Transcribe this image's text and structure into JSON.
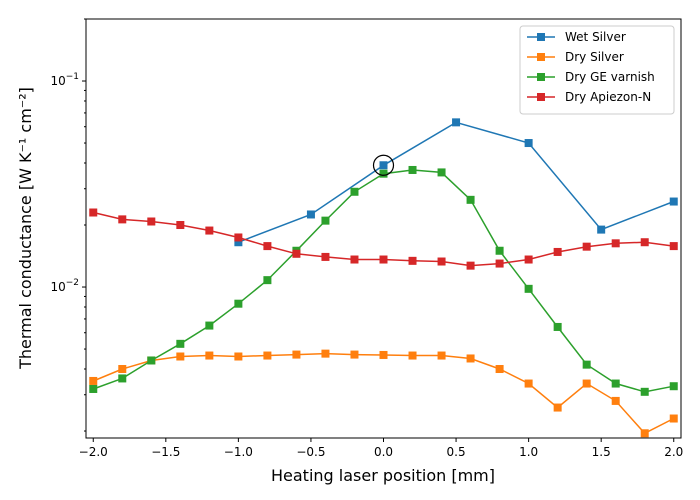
{
  "chart_data": {
    "type": "line",
    "xlabel": "Heating laser position [mm]",
    "ylabel": "Thermal conductance [W K⁻¹ cm⁻²]",
    "xlim": [
      -2.05,
      2.05
    ],
    "ylim": [
      0.00185,
      0.2
    ],
    "yscale": "log",
    "x_ticks": [
      -2.0,
      -1.5,
      -1.0,
      -0.5,
      0.0,
      0.5,
      1.0,
      1.5,
      2.0
    ],
    "x_tick_labels": [
      "−2.0",
      "−1.5",
      "−1.0",
      "−0.5",
      "0.0",
      "0.5",
      "1.0",
      "1.5",
      "2.0"
    ],
    "legend_position": "top-right",
    "series": [
      {
        "name": "Wet Silver",
        "color": "#1f77b4",
        "x": [
          -1.0,
          -0.5,
          0.0,
          0.5,
          1.0,
          1.5,
          2.0
        ],
        "y": [
          0.0165,
          0.0225,
          0.039,
          0.063,
          0.05,
          0.019,
          0.026
        ]
      },
      {
        "name": "Dry Silver",
        "color": "#ff7f0e",
        "x": [
          -2.0,
          -1.8,
          -1.6,
          -1.4,
          -1.2,
          -1.0,
          -0.8,
          -0.6,
          -0.4,
          -0.2,
          0.0,
          0.2,
          0.4,
          0.6,
          0.8,
          1.0,
          1.2,
          1.4,
          1.6,
          1.8,
          2.0
        ],
        "y": [
          0.0035,
          0.004,
          0.0044,
          0.0046,
          0.00465,
          0.0046,
          0.00465,
          0.0047,
          0.00475,
          0.0047,
          0.00468,
          0.00465,
          0.00465,
          0.0045,
          0.004,
          0.0034,
          0.0026,
          0.0034,
          0.0028,
          0.00195,
          0.0023
        ]
      },
      {
        "name": "Dry GE varnish",
        "color": "#2ca02c",
        "x": [
          -2.0,
          -1.8,
          -1.6,
          -1.4,
          -1.2,
          -1.0,
          -0.8,
          -0.6,
          -0.4,
          -0.2,
          0.0,
          0.2,
          0.4,
          0.6,
          0.8,
          1.0,
          1.2,
          1.4,
          1.6,
          1.8,
          2.0
        ],
        "y": [
          0.0032,
          0.0036,
          0.0044,
          0.0053,
          0.0065,
          0.0083,
          0.0108,
          0.015,
          0.021,
          0.029,
          0.0355,
          0.037,
          0.036,
          0.0265,
          0.015,
          0.0098,
          0.0064,
          0.0042,
          0.0034,
          0.0031,
          0.0033
        ]
      },
      {
        "name": "Dry Apiezon-N",
        "color": "#d62728",
        "x": [
          -2.0,
          -1.8,
          -1.6,
          -1.4,
          -1.2,
          -1.0,
          -0.8,
          -0.6,
          -0.4,
          -0.2,
          0.0,
          0.2,
          0.4,
          0.6,
          0.8,
          1.0,
          1.2,
          1.4,
          1.6,
          1.8,
          2.0
        ],
        "y": [
          0.023,
          0.0213,
          0.0208,
          0.02,
          0.0188,
          0.0174,
          0.0158,
          0.0145,
          0.014,
          0.0136,
          0.0136,
          0.0134,
          0.0133,
          0.0127,
          0.013,
          0.0136,
          0.0148,
          0.0157,
          0.0163,
          0.0165,
          0.0158
        ]
      }
    ],
    "annotations": [
      {
        "type": "circle-marker",
        "x": 0.0,
        "y": 0.039
      }
    ]
  }
}
